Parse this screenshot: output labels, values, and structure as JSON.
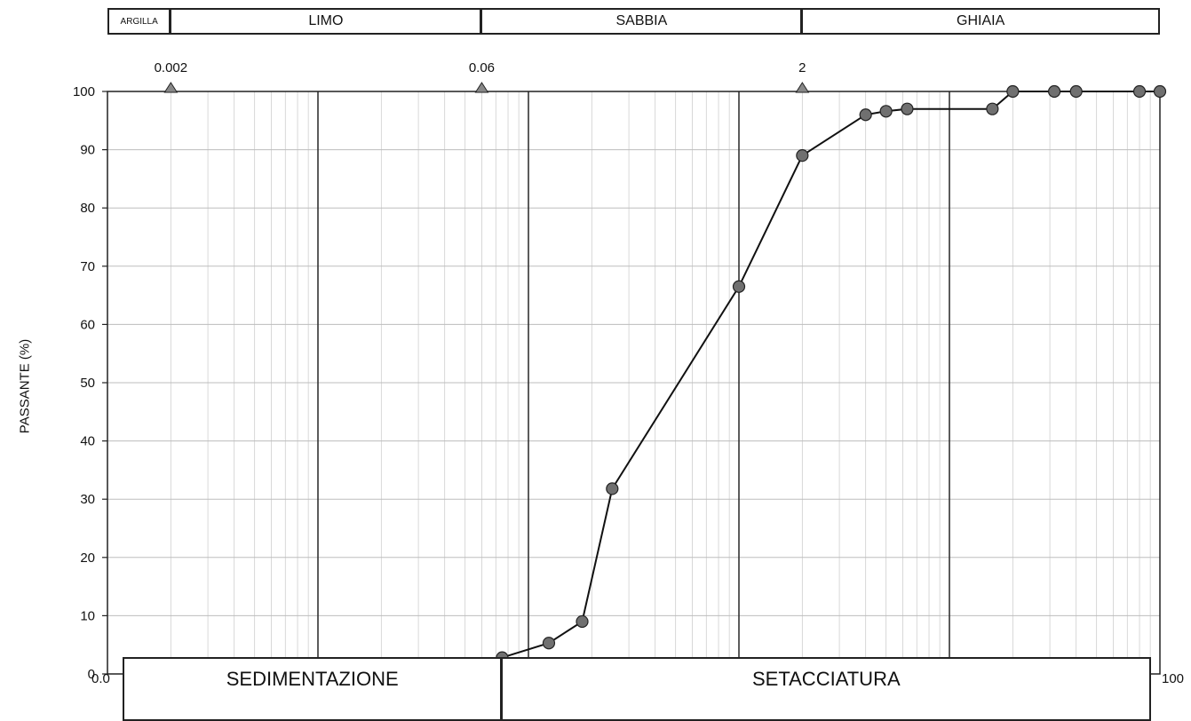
{
  "chart_data": {
    "type": "line",
    "x_scale": "log",
    "xlim": [
      0.001,
      100
    ],
    "ylim": [
      0,
      100
    ],
    "ylabel": "PASSANTE (%)",
    "y_ticks": [
      "0",
      "10",
      "20",
      "30",
      "40",
      "50",
      "60",
      "70",
      "80",
      "90",
      "100"
    ],
    "x_ticks": [
      {
        "value": 0.001,
        "label": "0.0"
      },
      {
        "value": 100,
        "label": "100"
      }
    ],
    "grid": true,
    "soil_bands": [
      {
        "label": "ARGILLA",
        "from": 0.001,
        "to": 0.002
      },
      {
        "label": "LIMO",
        "from": 0.002,
        "to": 0.06
      },
      {
        "label": "SABBIA",
        "from": 0.06,
        "to": 2
      },
      {
        "label": "GHIAIA",
        "from": 2,
        "to": 100
      }
    ],
    "boundary_markers": [
      {
        "value": 0.002,
        "label": "0.002",
        "y": 100
      },
      {
        "value": 0.06,
        "label": "0.06",
        "y": 100
      },
      {
        "value": 2,
        "label": "2",
        "y": 100
      }
    ],
    "extra_marker": {
      "x": 0.075,
      "y": 0
    },
    "methods": [
      {
        "label": "SEDIMENTAZIONE",
        "from": 0.00118,
        "to": 0.075
      },
      {
        "label": "SETACCIATURA",
        "from": 0.075,
        "to": 91
      }
    ],
    "series": [
      {
        "points": [
          {
            "x": 0.075,
            "y": 2.8
          },
          {
            "x": 0.125,
            "y": 5.3
          },
          {
            "x": 0.18,
            "y": 9
          },
          {
            "x": 0.25,
            "y": 31.8
          },
          {
            "x": 1.0,
            "y": 66.5
          },
          {
            "x": 2.0,
            "y": 89
          },
          {
            "x": 4.0,
            "y": 96
          },
          {
            "x": 5.0,
            "y": 96.6
          },
          {
            "x": 6.3,
            "y": 97
          },
          {
            "x": 16,
            "y": 97
          },
          {
            "x": 20,
            "y": 100
          },
          {
            "x": 31.5,
            "y": 100
          },
          {
            "x": 40,
            "y": 100
          },
          {
            "x": 80,
            "y": 100
          },
          {
            "x": 100,
            "y": 100
          }
        ]
      }
    ],
    "colors": {
      "line": "#111111",
      "point_fill": "#707070",
      "grid_major": "#333333",
      "grid_minor": "#cfcfcf",
      "marker": "#888888"
    }
  }
}
